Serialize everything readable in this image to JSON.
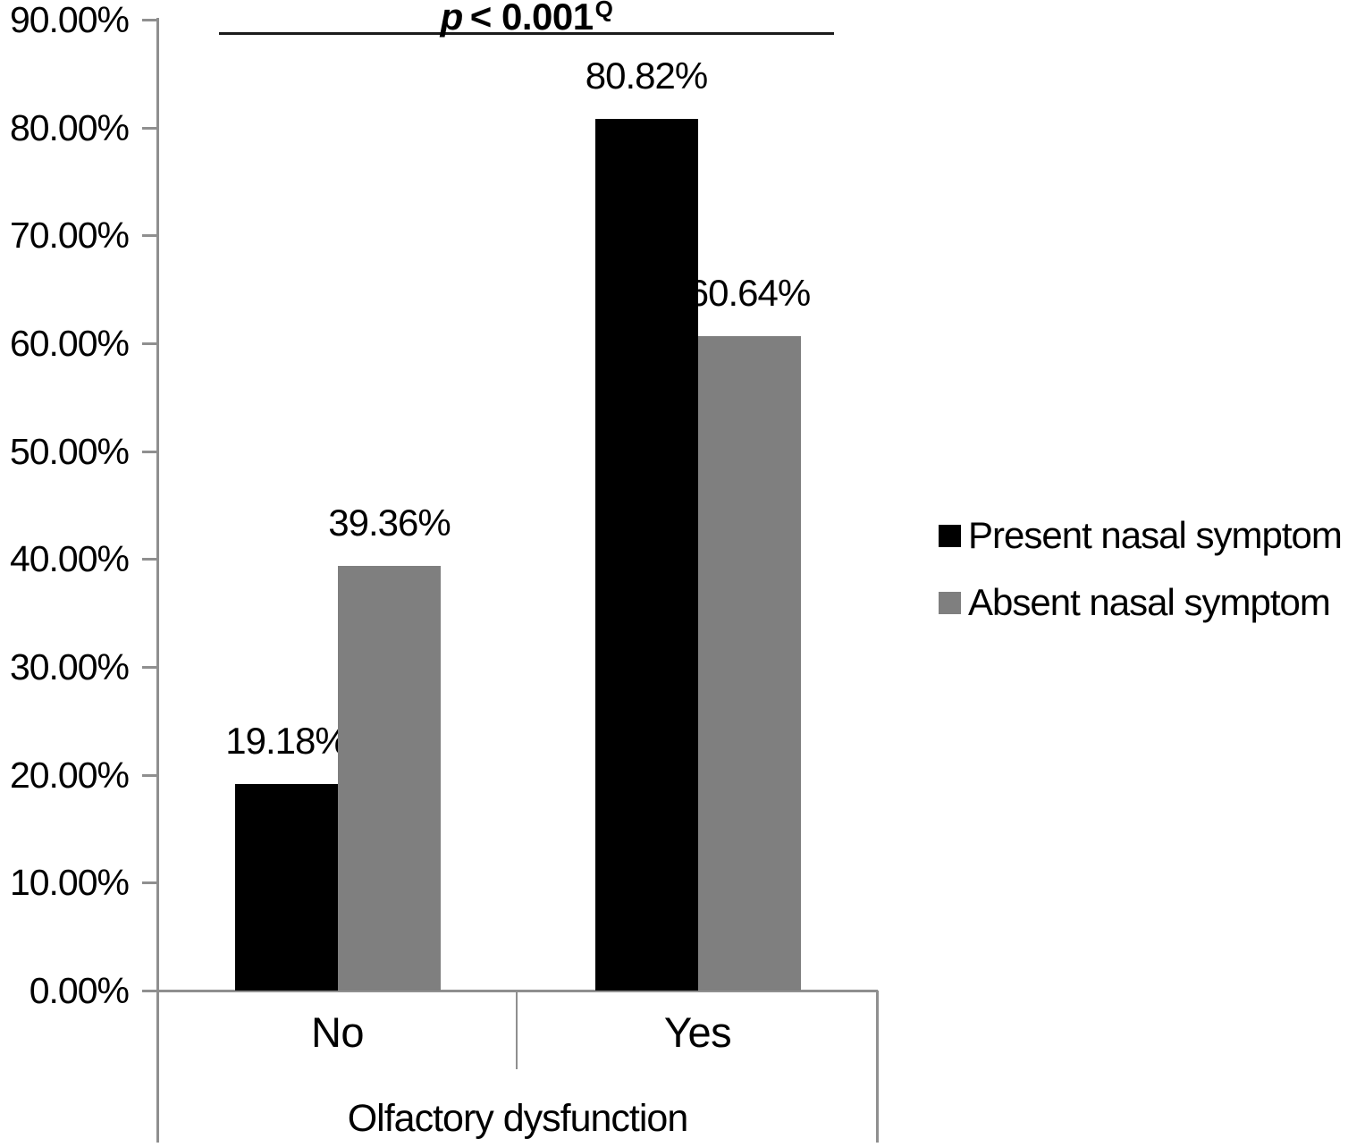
{
  "chart_data": {
    "type": "bar",
    "title": "",
    "categories": [
      "No",
      "Yes"
    ],
    "series": [
      {
        "name": "Present nasal symptom",
        "color": "#000000",
        "values": [
          19.18,
          80.82
        ],
        "labels": [
          "19.18%",
          "80.82%"
        ]
      },
      {
        "name": "Absent nasal symptom",
        "color": "#7f7f7f",
        "values": [
          39.36,
          60.64
        ],
        "labels": [
          "39.36%",
          "60.64%"
        ]
      }
    ],
    "xlabel": "Olfactory dysfunction",
    "ylabel": "",
    "ylim": [
      0,
      90
    ],
    "y_tick_labels": [
      "90.00%",
      "80.00%",
      "70.00%",
      "60.00%",
      "50.00%",
      "40.00%",
      "30.00%",
      "20.00%",
      "10.00%",
      "0.00%"
    ],
    "grid": false,
    "legend_position": "right",
    "annotation": {
      "p_italic": "p",
      "comparison": "< 0.001",
      "superscript": "Q"
    }
  }
}
